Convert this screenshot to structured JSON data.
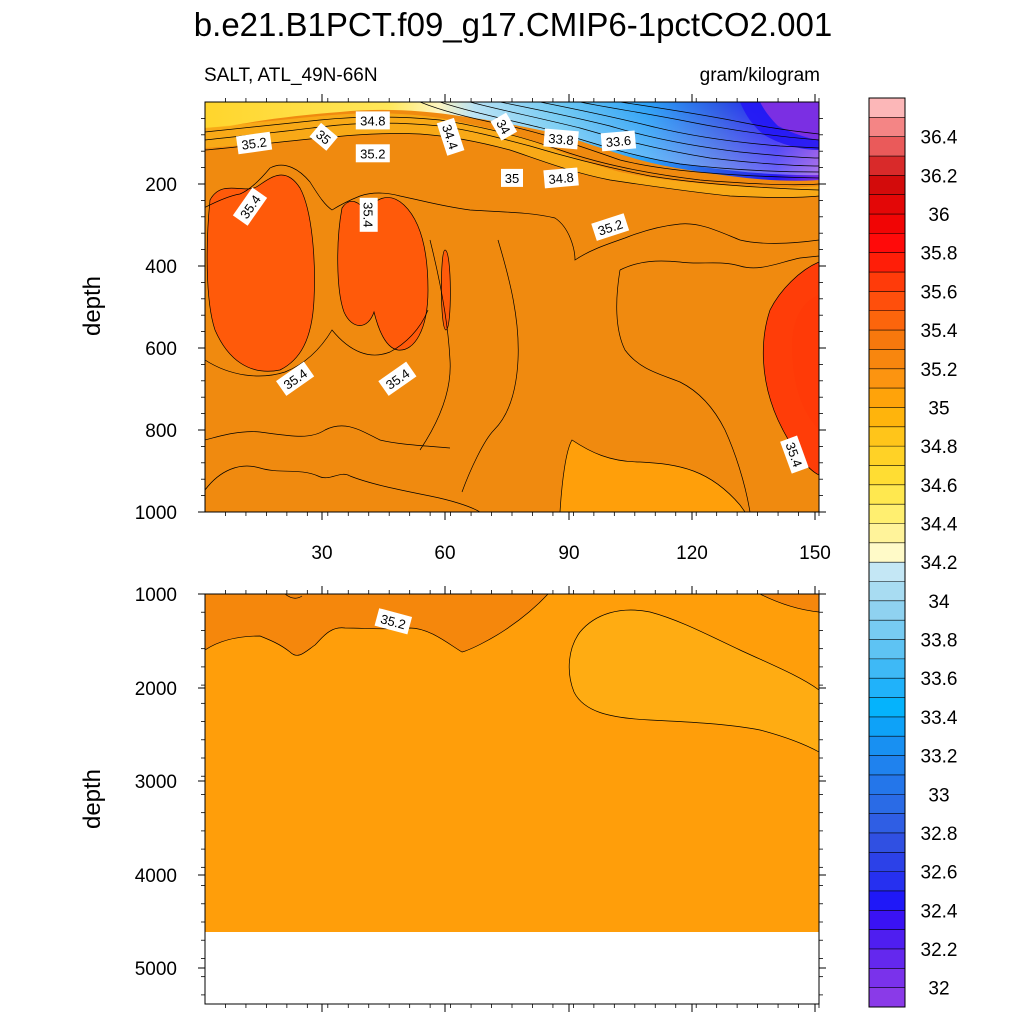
{
  "chart_data": [
    {
      "type": "heatmap",
      "title": "b.e21.B1PCT.f09_g17.CMIP6-1pctCO2.001",
      "left_subtitle": "SALT, ATL_49N-66N",
      "right_subtitle": "gram/kilogram",
      "panel": "upper",
      "xlabel": "",
      "ylabel": "depth",
      "xlim": [
        0,
        150
      ],
      "ylim": [
        1000,
        0
      ],
      "x_ticks": [
        "30",
        "60",
        "90",
        "120",
        "150"
      ],
      "y_ticks": [
        "200",
        "400",
        "600",
        "800",
        "1000"
      ],
      "regions": [
        {
          "name": "background",
          "value": 35.1,
          "color": "#f08a0f"
        },
        {
          "name": "fresh-surface-layer",
          "value": 32.0,
          "color": "#7b2fe3"
        },
        {
          "name": "upper-core-1",
          "value": 35.45,
          "color": "#ff5a0a"
        },
        {
          "name": "upper-core-2",
          "value": 35.45,
          "color": "#ff5a0a"
        },
        {
          "name": "upper-core-3",
          "value": 35.45,
          "color": "#ff5a0a"
        },
        {
          "name": "east-core",
          "value": 35.5,
          "color": "#ff3d08"
        },
        {
          "name": "deep-tongue",
          "value": 35.0,
          "color": "#ff9f0a"
        }
      ],
      "contour_labels": [
        {
          "text": "35.2",
          "x": 12,
          "depth": 100,
          "rotate": -8
        },
        {
          "text": "35",
          "x": 29,
          "depth": 85,
          "rotate": 40
        },
        {
          "text": "34.8",
          "x": 41,
          "depth": 45,
          "rotate": 0
        },
        {
          "text": "35.2",
          "x": 41,
          "depth": 125,
          "rotate": 0
        },
        {
          "text": "34.4",
          "x": 60,
          "depth": 85,
          "rotate": 72
        },
        {
          "text": "34",
          "x": 73,
          "depth": 60,
          "rotate": 60
        },
        {
          "text": "33.8",
          "x": 87,
          "depth": 90,
          "rotate": 5
        },
        {
          "text": "33.6",
          "x": 101,
          "depth": 95,
          "rotate": -5
        },
        {
          "text": "35",
          "x": 75,
          "depth": 185,
          "rotate": 0
        },
        {
          "text": "34.8",
          "x": 87,
          "depth": 185,
          "rotate": -5
        },
        {
          "text": "35.2",
          "x": 99,
          "depth": 305,
          "rotate": -18
        },
        {
          "text": "35.4",
          "x": 11,
          "depth": 255,
          "rotate": -55
        },
        {
          "text": "35.4",
          "x": 40,
          "depth": 275,
          "rotate": 90
        },
        {
          "text": "35.4",
          "x": 22,
          "depth": 675,
          "rotate": -35
        },
        {
          "text": "35.4",
          "x": 47,
          "depth": 675,
          "rotate": -35
        },
        {
          "text": "35.4",
          "x": 144,
          "depth": 860,
          "rotate": 70
        }
      ]
    },
    {
      "type": "heatmap",
      "panel": "lower",
      "xlabel": "",
      "ylabel": "depth",
      "xlim": [
        0,
        150
      ],
      "ylim": [
        5500,
        1000
      ],
      "y_ticks": [
        "1000",
        "2000",
        "3000",
        "4000",
        "5000"
      ],
      "ocean_floor_depth": 4630,
      "regions": [
        {
          "name": "upper-band",
          "value": 35.2,
          "color": "#f5870c"
        },
        {
          "name": "main",
          "value": 35.1,
          "color": "#ff9e0a"
        },
        {
          "name": "east-lens",
          "value": 35.0,
          "color": "#ffac12"
        },
        {
          "name": "below-floor",
          "value": null,
          "color": "#ffffff"
        }
      ],
      "contour_labels": [
        {
          "text": "35.2",
          "x": 46,
          "depth": 1300,
          "rotate": 15
        }
      ]
    }
  ],
  "colorbar": {
    "levels": [
      {
        "label": "",
        "color": "#fcb7b8"
      },
      {
        "label": "36.4",
        "color": "#f48585"
      },
      {
        "label": "",
        "color": "#ea5a5a"
      },
      {
        "label": "36.2",
        "color": "#d92a2a"
      },
      {
        "label": "",
        "color": "#d30b0b"
      },
      {
        "label": "36",
        "color": "#e30707"
      },
      {
        "label": "",
        "color": "#f10505"
      },
      {
        "label": "35.8",
        "color": "#ff0a0a"
      },
      {
        "label": "",
        "color": "#ff1e08"
      },
      {
        "label": "35.6",
        "color": "#ff3b0a"
      },
      {
        "label": "",
        "color": "#ff4f0c"
      },
      {
        "label": "35.4",
        "color": "#fc650c"
      },
      {
        "label": "",
        "color": "#f7780d"
      },
      {
        "label": "35.2",
        "color": "#f8860e"
      },
      {
        "label": "",
        "color": "#fc9410"
      },
      {
        "label": "35",
        "color": "#ffa30a"
      },
      {
        "label": "",
        "color": "#ffb40c"
      },
      {
        "label": "34.8",
        "color": "#ffc51a"
      },
      {
        "label": "",
        "color": "#ffd226"
      },
      {
        "label": "34.6",
        "color": "#ffdd33"
      },
      {
        "label": "",
        "color": "#ffe84f"
      },
      {
        "label": "34.4",
        "color": "#ffef70"
      },
      {
        "label": "",
        "color": "#fff39a"
      },
      {
        "label": "34.2",
        "color": "#fffac8"
      },
      {
        "label": "",
        "color": "#c4e7f5"
      },
      {
        "label": "34",
        "color": "#a8dcf2"
      },
      {
        "label": "",
        "color": "#8fd2f0"
      },
      {
        "label": "33.8",
        "color": "#77cbf2"
      },
      {
        "label": "",
        "color": "#5ec3f3"
      },
      {
        "label": "33.6",
        "color": "#3eb9f6"
      },
      {
        "label": "",
        "color": "#20b2fa"
      },
      {
        "label": "33.4",
        "color": "#05b3fc"
      },
      {
        "label": "",
        "color": "#0ea2f8"
      },
      {
        "label": "33.2",
        "color": "#1890f2"
      },
      {
        "label": "",
        "color": "#1f82ee"
      },
      {
        "label": "33",
        "color": "#2476ea"
      },
      {
        "label": "",
        "color": "#2a6be6"
      },
      {
        "label": "32.8",
        "color": "#2f5ee4"
      },
      {
        "label": "",
        "color": "#3050e2"
      },
      {
        "label": "32.6",
        "color": "#2c41e8"
      },
      {
        "label": "",
        "color": "#2630f0"
      },
      {
        "label": "32.4",
        "color": "#1f18f8"
      },
      {
        "label": "",
        "color": "#3a12f4"
      },
      {
        "label": "32.2",
        "color": "#4f1ef0"
      },
      {
        "label": "",
        "color": "#6428ee"
      },
      {
        "label": "32",
        "color": "#7a32eb"
      },
      {
        "label": "",
        "color": "#8a3ae8"
      }
    ]
  }
}
